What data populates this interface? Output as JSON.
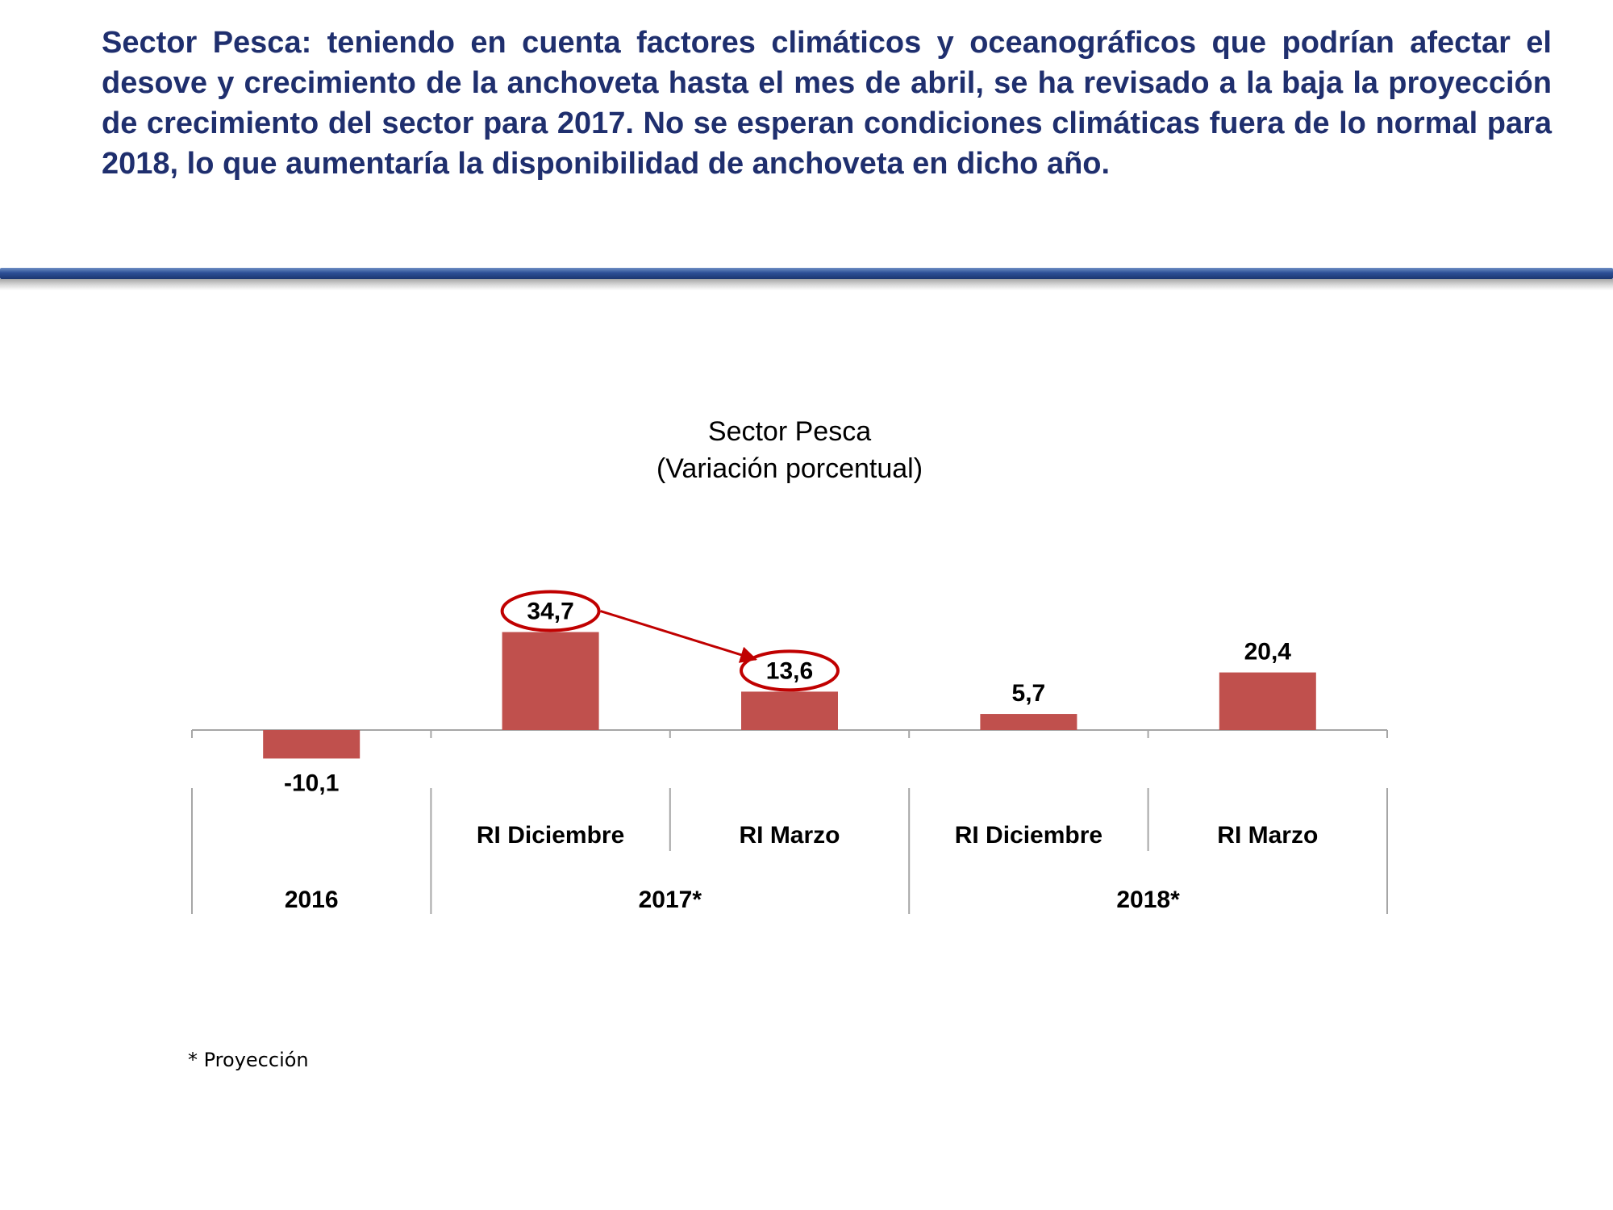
{
  "headline": "Sector Pesca: teniendo en cuenta factores climáticos y oceanográficos que podrían afectar el desove y crecimiento de la anchoveta hasta el mes de abril, se ha revisado a la baja la proyección de crecimiento del sector para 2017. No se esperan condiciones climáticas fuera de lo normal para 2018, lo que aumentaría la disponibilidad de anchoveta en dicho año.",
  "footnote": "* Proyección",
  "colors": {
    "bar": "#c0504d",
    "highlight": "#c00000",
    "headline": "#1f2f6e",
    "axis": "#a6a6a6"
  },
  "chart_data": {
    "type": "bar",
    "title": "Sector Pesca",
    "subtitle": "(Variación porcentual)",
    "categories": [
      "",
      "RI Diciembre",
      "RI Marzo",
      "RI Diciembre",
      "RI Marzo"
    ],
    "groups": [
      {
        "label": "2016",
        "categories": [
          0
        ]
      },
      {
        "label": "2017*",
        "categories": [
          1,
          2
        ]
      },
      {
        "label": "2018*",
        "categories": [
          3,
          4
        ]
      }
    ],
    "values": [
      -10.1,
      34.7,
      13.6,
      5.7,
      20.4
    ],
    "value_labels": [
      "-10,1",
      "34,7",
      "13,6",
      "5,7",
      "20,4"
    ],
    "highlighted": [
      1,
      2
    ],
    "arrow": {
      "from": 1,
      "to": 2
    },
    "ylim": [
      -12,
      40
    ],
    "grid": false,
    "legend": "none"
  }
}
